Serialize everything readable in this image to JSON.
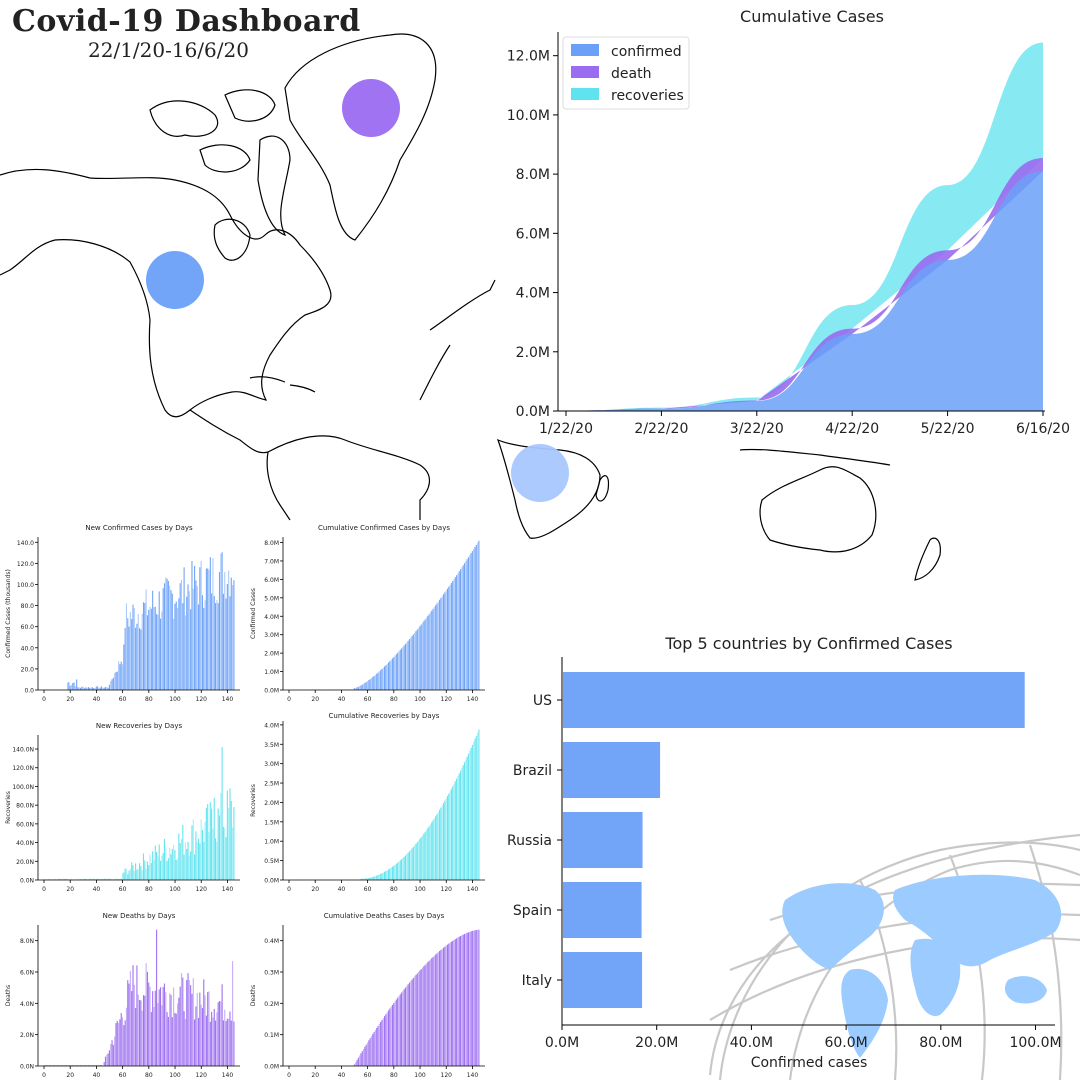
{
  "header": {
    "title": "Covid-19 Dashboard",
    "subtitle": "22/1/20-16/6/20"
  },
  "colors": {
    "confirmed": "#6aa0f8",
    "death": "#9a6cf0",
    "recoveries": "#5fe3ee",
    "map_light": "#a9c7ff",
    "globe_land": "#9ccbff"
  },
  "chart_data": [
    {
      "type": "area",
      "title": "Cumulative Cases",
      "x": [
        "1/22/20",
        "2/22/20",
        "3/22/20",
        "4/22/20",
        "5/22/20",
        "6/16/20"
      ],
      "series": [
        {
          "name": "confirmed",
          "values": [
            0.0006,
            0.08,
            0.34,
            2.6,
            5.1,
            8.1
          ]
        },
        {
          "name": "death",
          "values": [
            2e-05,
            0.0025,
            0.015,
            0.18,
            0.33,
            0.44
          ]
        },
        {
          "name": "recoveries",
          "values": [
            3e-05,
            0.03,
            0.1,
            0.8,
            2.2,
            3.9
          ]
        }
      ],
      "y_ticks": [
        "0.0M",
        "2.0M",
        "4.0M",
        "6.0M",
        "8.0M",
        "10.0M",
        "12.0M"
      ],
      "ylim": [
        0,
        12.8
      ],
      "legend": "top-left"
    },
    {
      "type": "bar",
      "orientation": "horizontal",
      "title": "Top 5 countries by Confirmed Cases",
      "categories": [
        "US",
        "Brazil",
        "Russia",
        "Spain",
        "Italy"
      ],
      "values": [
        97.5,
        20.5,
        16.8,
        16.6,
        16.7
      ],
      "xlabel": "Confirmed cases",
      "x_ticks": [
        "0.0M",
        "20.0M",
        "40.0M",
        "60.0M",
        "80.0M",
        "100.0M"
      ],
      "xlim": [
        0,
        102
      ]
    },
    {
      "type": "bar",
      "title": "New Confirmed Cases by Days",
      "ylabel": "Confirmed Cases (thousands)",
      "y_ticks": [
        "0.0",
        "20.0",
        "40.0",
        "60.0",
        "80.0",
        "100.0",
        "120.0",
        "140.0"
      ],
      "ylim": [
        0,
        145
      ],
      "x_ticks": [
        "0",
        "20",
        "40",
        "60",
        "80",
        "100",
        "120",
        "140"
      ],
      "shape": "new_confirmed",
      "color": "#6aa0f8"
    },
    {
      "type": "bar",
      "title": "Cumulative Confirmed Cases by Days",
      "ylabel": "Confirmed Cases",
      "y_ticks": [
        "0.0M",
        "1.0M",
        "2.0M",
        "3.0M",
        "4.0M",
        "5.0M",
        "6.0M",
        "7.0M",
        "8.0M"
      ],
      "ylim": [
        0,
        8.3
      ],
      "x_ticks": [
        "0",
        "20",
        "40",
        "60",
        "80",
        "100",
        "120",
        "140"
      ],
      "shape": "cum_confirmed",
      "color": "#6aa0f8"
    },
    {
      "type": "bar",
      "title": "New Recoveries by Days",
      "ylabel": "Recoveries",
      "y_ticks": [
        "0.0N",
        "20.0N",
        "40.0N",
        "60.0N",
        "80.0N",
        "100.0N",
        "120.0N",
        "140.0N"
      ],
      "ylim": [
        0,
        155
      ],
      "x_ticks": [
        "0",
        "20",
        "40",
        "60",
        "80",
        "100",
        "120",
        "140"
      ],
      "shape": "new_recov",
      "color": "#5fe3ee"
    },
    {
      "type": "bar",
      "title": "Cumulative Recoveries by Days",
      "ylabel": "Recoveries",
      "y_ticks": [
        "0.0M",
        "0.5M",
        "1.0M",
        "1.5M",
        "2.0M",
        "2.5M",
        "3.0M",
        "3.5M",
        "4.0M"
      ],
      "ylim": [
        0,
        4.1
      ],
      "x_ticks": [
        "0",
        "20",
        "40",
        "60",
        "80",
        "100",
        "120",
        "140"
      ],
      "shape": "cum_recov",
      "color": "#5fe3ee"
    },
    {
      "type": "bar",
      "title": "New Deaths by Days",
      "ylabel": "Deaths",
      "y_ticks": [
        "0.0N",
        "2.0N",
        "4.0N",
        "6.0N",
        "8.0N"
      ],
      "ylim": [
        0,
        9
      ],
      "x_ticks": [
        "0",
        "20",
        "40",
        "60",
        "80",
        "100",
        "120",
        "140"
      ],
      "shape": "new_death",
      "color": "#9a6cf0"
    },
    {
      "type": "bar",
      "title": "Cumulative Deaths Cases by Days",
      "ylabel": "Deaths",
      "y_ticks": [
        "0.0M",
        "0.1M",
        "0.2M",
        "0.3M",
        "0.4M"
      ],
      "ylim": [
        0,
        0.45
      ],
      "x_ticks": [
        "0",
        "20",
        "40",
        "60",
        "80",
        "100",
        "120",
        "140"
      ],
      "shape": "cum_death",
      "color": "#9a6cf0"
    }
  ]
}
